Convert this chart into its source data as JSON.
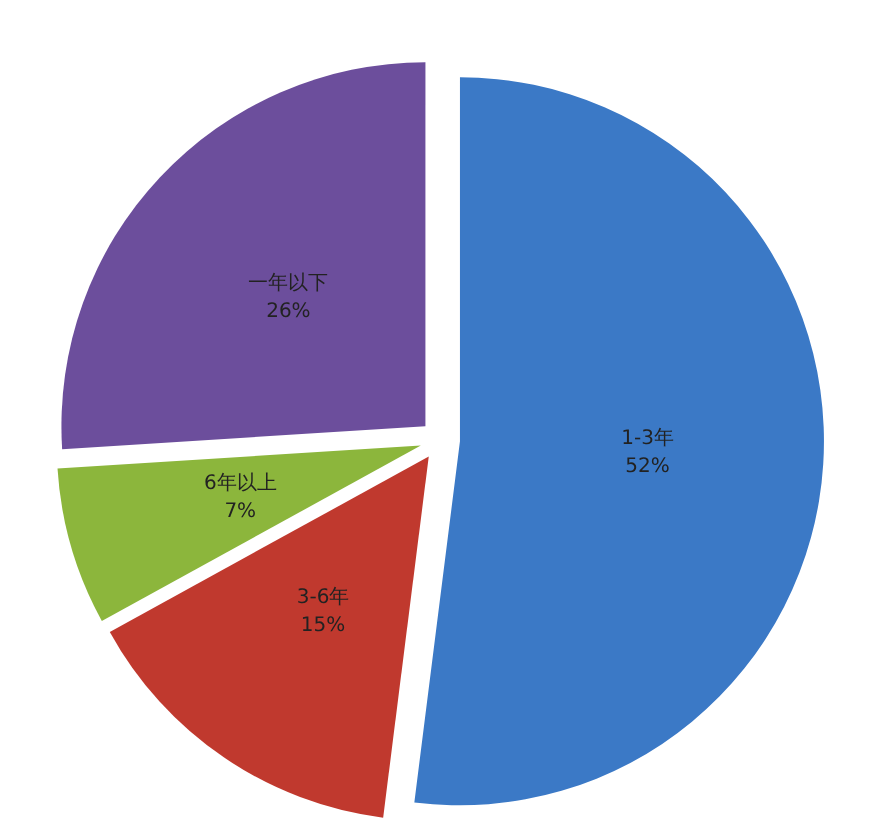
{
  "chart_data": {
    "type": "pie",
    "categories": [
      "1-3年",
      "3-6年",
      "6年以上",
      "一年以下"
    ],
    "values": [
      52,
      15,
      7,
      26
    ],
    "colors": [
      "#3b79c6",
      "#c0392e",
      "#8cb63c",
      "#6c4e9c"
    ],
    "value_labels": [
      "52%",
      "15%",
      "7%",
      "26%"
    ]
  }
}
